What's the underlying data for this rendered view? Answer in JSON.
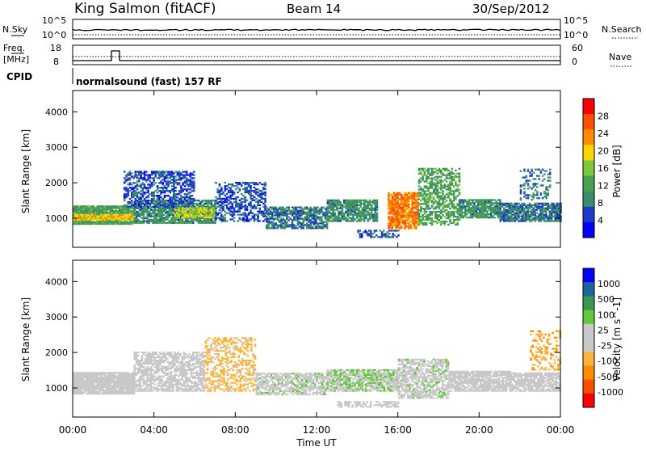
{
  "header": {
    "station": "King Salmon (fitACF)",
    "beam": "Beam 14",
    "date": "30/Sep/2012"
  },
  "status_panels": {
    "nsky_label": "N.Sky",
    "nsky_ticks": [
      "10^5",
      "10^0"
    ],
    "nsearch_label": "N.Search",
    "nsearch_ticks": [
      "10^5",
      "10^0"
    ],
    "freq_label": "Freq.",
    "freq_unit": "[MHz]",
    "freq_ticks": [
      "18",
      "8"
    ],
    "nave_label": "Nave",
    "nave_ticks": [
      "60",
      "0"
    ],
    "cpid_label": "CPID",
    "cpid_text": "normalsound (fast) 157 RF"
  },
  "colors": {
    "power_scale": [
      "#0000ff",
      "#1e3cc8",
      "#3a8c6e",
      "#4da050",
      "#7cc83c",
      "#ffd400",
      "#ff8c00",
      "#ff5000",
      "#ff0000"
    ],
    "velocity_scale": [
      "#ff0000",
      "#ff4d00",
      "#ff8c00",
      "#ffb43c",
      "#c8c8c8",
      "#c8c8c8",
      "#64c83c",
      "#3c9650",
      "#1e64a0",
      "#0000ff"
    ],
    "ground_scatter": "#c8c8c8"
  },
  "chart_data": [
    {
      "type": "heatmap",
      "title": "",
      "xlabel": "",
      "ylabel": "Slant Range [km]",
      "xlim": [
        0,
        24
      ],
      "ylim": [
        180,
        4600
      ],
      "x_ticks": [
        "00:00",
        "04:00",
        "08:00",
        "12:00",
        "16:00",
        "20:00",
        "00:00"
      ],
      "y_ticks": [
        "1000",
        "2000",
        "3000",
        "4000"
      ],
      "colorbar": {
        "label": "Power [dB]",
        "ticks": [
          "28",
          "24",
          "20",
          "16",
          "12",
          "8",
          "4"
        ],
        "range": [
          0,
          32
        ]
      },
      "bands": [
        {
          "t": [
            0.0,
            3.0
          ],
          "r": [
            820,
            1320
          ],
          "v": 12,
          "density": 0.95
        },
        {
          "t": [
            0.0,
            3.0
          ],
          "r": [
            940,
            1120
          ],
          "v": 20,
          "density": 0.9
        },
        {
          "t": [
            3.0,
            7.0
          ],
          "r": [
            850,
            1500
          ],
          "v": 10,
          "density": 0.85
        },
        {
          "t": [
            2.5,
            6.0
          ],
          "r": [
            1300,
            2300
          ],
          "v": 6,
          "density": 0.6
        },
        {
          "t": [
            5.0,
            7.0
          ],
          "r": [
            1000,
            1300
          ],
          "v": 18,
          "density": 0.7
        },
        {
          "t": [
            7.0,
            9.5
          ],
          "r": [
            900,
            2000
          ],
          "v": 6,
          "density": 0.5
        },
        {
          "t": [
            9.5,
            12.5
          ],
          "r": [
            700,
            1300
          ],
          "v": 8,
          "density": 0.75
        },
        {
          "t": [
            12.5,
            15.0
          ],
          "r": [
            900,
            1500
          ],
          "v": 10,
          "density": 0.8
        },
        {
          "t": [
            14.0,
            16.0
          ],
          "r": [
            450,
            650
          ],
          "v": 6,
          "density": 0.55
        },
        {
          "t": [
            15.5,
            17.0
          ],
          "r": [
            700,
            1700
          ],
          "v": 24,
          "density": 0.85
        },
        {
          "t": [
            17.0,
            19.0
          ],
          "r": [
            800,
            2400
          ],
          "v": 12,
          "density": 0.6
        },
        {
          "t": [
            19.0,
            21.0
          ],
          "r": [
            1000,
            1500
          ],
          "v": 10,
          "density": 0.85
        },
        {
          "t": [
            21.0,
            24.0
          ],
          "r": [
            900,
            1400
          ],
          "v": 8,
          "density": 0.85
        },
        {
          "t": [
            22.0,
            23.5
          ],
          "r": [
            1500,
            2400
          ],
          "v": 8,
          "density": 0.3
        }
      ]
    },
    {
      "type": "heatmap",
      "title": "",
      "xlabel": "Time UT",
      "ylabel": "Slant Range [km]",
      "xlim": [
        0,
        24
      ],
      "ylim": [
        180,
        4600
      ],
      "x_ticks": [
        "00:00",
        "04:00",
        "08:00",
        "12:00",
        "16:00",
        "20:00",
        "00:00"
      ],
      "y_ticks": [
        "1000",
        "2000",
        "3000",
        "4000"
      ],
      "colorbar": {
        "label": "Velocity [m s^-1]",
        "ticks": [
          "1000",
          "500",
          "100",
          "25",
          "-25",
          "-100",
          "-500",
          "-1000"
        ],
        "range": [
          -1200,
          1200
        ]
      },
      "bands": [
        {
          "t": [
            0.0,
            3.0
          ],
          "r": [
            820,
            1450
          ],
          "v": 0,
          "density": 0.95
        },
        {
          "t": [
            3.0,
            6.5
          ],
          "r": [
            900,
            2000
          ],
          "v": 0,
          "density": 0.7
        },
        {
          "t": [
            6.5,
            9.0
          ],
          "r": [
            900,
            2400
          ],
          "v": -300,
          "density": 0.45
        },
        {
          "t": [
            9.0,
            12.5
          ],
          "r": [
            800,
            1400
          ],
          "v": 150,
          "density": 0.75
        },
        {
          "t": [
            12.5,
            16.0
          ],
          "r": [
            900,
            1500
          ],
          "v": 200,
          "density": 0.8
        },
        {
          "t": [
            13.0,
            16.0
          ],
          "r": [
            450,
            620
          ],
          "v": 80,
          "density": 0.6
        },
        {
          "t": [
            16.0,
            18.5
          ],
          "r": [
            700,
            1800
          ],
          "v": 150,
          "density": 0.7
        },
        {
          "t": [
            18.5,
            21.5
          ],
          "r": [
            900,
            1450
          ],
          "v": 0,
          "density": 0.85
        },
        {
          "t": [
            21.5,
            24.0
          ],
          "r": [
            900,
            1400
          ],
          "v": 0,
          "density": 0.8
        },
        {
          "t": [
            22.5,
            24.0
          ],
          "r": [
            1500,
            2600
          ],
          "v": -500,
          "density": 0.3
        }
      ]
    }
  ]
}
